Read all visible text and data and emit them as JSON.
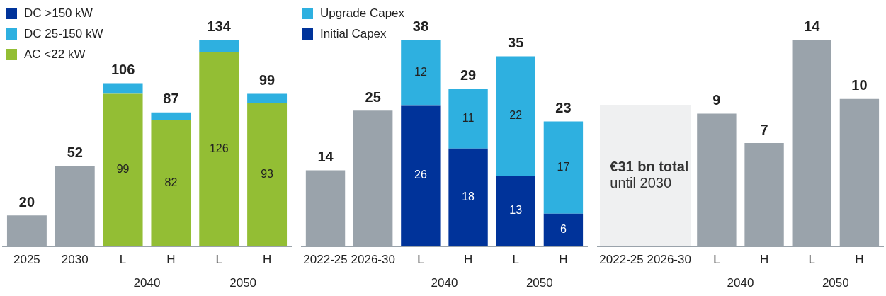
{
  "chart_data": [
    {
      "type": "bar",
      "stacked": true,
      "categories": [
        "2025",
        "2030",
        "L",
        "H",
        "L",
        "H"
      ],
      "series": [
        {
          "color": "#9aa3ab",
          "values": [
            20,
            52,
            null,
            null,
            null,
            null
          ]
        },
        {
          "name": "AC <22 kW",
          "color": "#93be34",
          "values": [
            null,
            null,
            99,
            82,
            126,
            93
          ],
          "value_labels": [
            null,
            null,
            "99",
            "82",
            "126",
            "93"
          ]
        },
        {
          "name": "DC 25-150 kW",
          "color": "#2eb0e0",
          "values": [
            null,
            null,
            7,
            5,
            8,
            6
          ]
        },
        {
          "name": "DC >150 kW",
          "color": "#00339a",
          "values": [
            null,
            null,
            null,
            null,
            null,
            null
          ]
        }
      ],
      "totals": [
        "20",
        "52",
        "106",
        "87",
        "134",
        "99"
      ],
      "annotations": [
        "2040",
        "2050"
      ],
      "legend": "top left"
    },
    {
      "type": "bar",
      "stacked": true,
      "categories": [
        "2022-25",
        "2026-30",
        "L",
        "H",
        "L",
        "H"
      ],
      "series": [
        {
          "color": "#9aa3ab",
          "values": [
            14,
            25,
            null,
            null,
            null,
            null
          ]
        },
        {
          "name": "Initial Capex",
          "color": "#00339a",
          "values": [
            null,
            null,
            26,
            18,
            13,
            6
          ],
          "value_labels": [
            null,
            null,
            "26",
            "18",
            "13",
            "6"
          ]
        },
        {
          "name": "Upgrade Capex",
          "color": "#2eb0e0",
          "values": [
            null,
            null,
            12,
            11,
            22,
            17
          ],
          "value_labels": [
            null,
            null,
            "12",
            "11",
            "22",
            "17"
          ]
        }
      ],
      "totals": [
        "14",
        "25",
        "38",
        "29",
        "35",
        "23"
      ],
      "annotations": [
        "2040",
        "2050"
      ],
      "legend": "top left"
    },
    {
      "type": "bar",
      "categories": [
        "2022-25",
        "2026-30",
        "L",
        "H",
        "L",
        "H"
      ],
      "series": [
        {
          "color": "#9aa3ab",
          "values": [
            null,
            null,
            9,
            7,
            14,
            10
          ]
        }
      ],
      "data_labels": true,
      "annotations": [
        "2040",
        "2050",
        "€31 bn total",
        "until 2030"
      ]
    }
  ]
}
